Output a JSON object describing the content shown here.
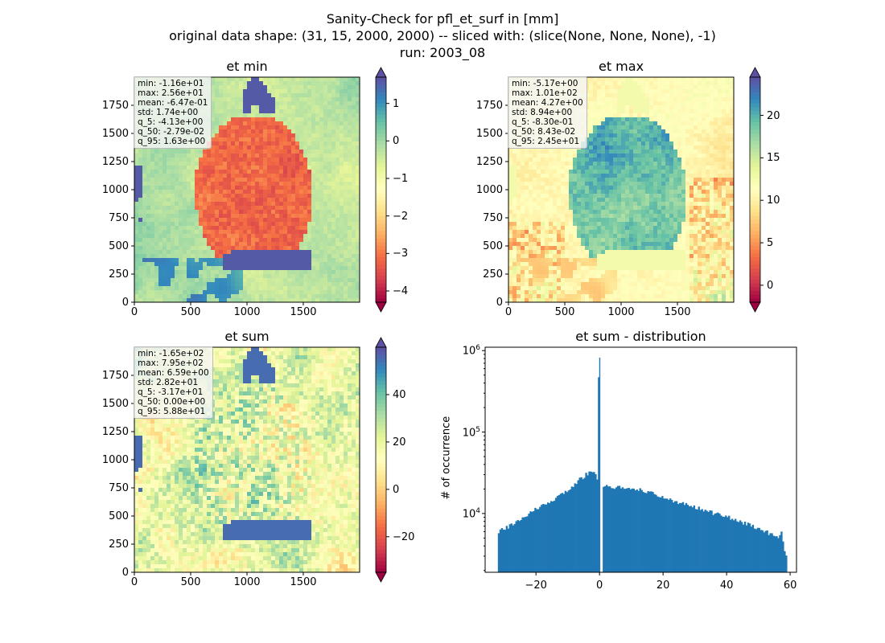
{
  "figure": {
    "title_lines": [
      "Sanity-Check for pfl_et_surf in [mm]",
      "original data shape: (31, 15, 2000, 2000) -- sliced with: (slice(None, None, None), -1)",
      "run: 2003_08"
    ]
  },
  "colors": {
    "spectral": [
      "#9e0142",
      "#d53e4f",
      "#f46d43",
      "#fdae61",
      "#fee08b",
      "#ffffbf",
      "#e6f598",
      "#abdda4",
      "#66c2a5",
      "#3288bd",
      "#5e4fa2"
    ],
    "hist_bar": "#1f77b4"
  },
  "chart_data": [
    {
      "type": "heatmap",
      "title": "et min",
      "x_ticks": [
        "0",
        "500",
        "1000",
        "1500"
      ],
      "y_ticks": [
        "0",
        "250",
        "500",
        "750",
        "1000",
        "1250",
        "1500",
        "1750"
      ],
      "xlim": [
        0,
        2000
      ],
      "ylim": [
        0,
        2000
      ],
      "colorbar": {
        "vmin": -4.3,
        "vmax": 1.7,
        "ticks": [
          "1",
          "0",
          "−1",
          "−2",
          "−3",
          "−4"
        ],
        "tick_values": [
          1,
          0,
          -1,
          -2,
          -3,
          -4
        ],
        "cmap": "Spectral",
        "extend": "both"
      },
      "stats": [
        "min: -1.16e+01",
        "max: 2.56e+01",
        "mean: -6.47e-01",
        "std: 1.74e+00",
        "q_5: -4.13e+00",
        "q_50: -2.79e-02",
        "q_95: 1.63e+00"
      ]
    },
    {
      "type": "heatmap",
      "title": "et max",
      "x_ticks": [
        "0",
        "500",
        "1000",
        "1500"
      ],
      "y_ticks": [
        "0",
        "250",
        "500",
        "750",
        "1000",
        "1250",
        "1500",
        "1750"
      ],
      "xlim": [
        0,
        2000
      ],
      "ylim": [
        0,
        2000
      ],
      "colorbar": {
        "vmin": -2,
        "vmax": 24.5,
        "ticks": [
          "20",
          "15",
          "10",
          "5",
          "0"
        ],
        "tick_values": [
          20,
          15,
          10,
          5,
          0
        ],
        "cmap": "Spectral",
        "extend": "both"
      },
      "stats": [
        "min: -5.17e+00",
        "max: 1.01e+02",
        "mean: 4.27e+00",
        "std: 8.94e+00",
        "q_5: -8.30e-01",
        "q_50: 8.43e-02",
        "q_95: 2.45e+01"
      ]
    },
    {
      "type": "heatmap",
      "title": "et sum",
      "x_ticks": [
        "0",
        "500",
        "1000",
        "1500"
      ],
      "y_ticks": [
        "0",
        "250",
        "500",
        "750",
        "1000",
        "1250",
        "1500",
        "1750"
      ],
      "xlim": [
        0,
        2000
      ],
      "ylim": [
        0,
        2000
      ],
      "colorbar": {
        "vmin": -35,
        "vmax": 60,
        "ticks": [
          "40",
          "20",
          "0",
          "−20"
        ],
        "tick_values": [
          40,
          20,
          0,
          -20
        ],
        "cmap": "Spectral",
        "extend": "both"
      },
      "stats": [
        "min: -1.65e+02",
        "max: 7.95e+02",
        "mean: 6.59e+00",
        "std: 2.82e+01",
        "q_5: -3.17e+01",
        "q_50: 0.00e+00",
        "q_95: 5.88e+01"
      ]
    },
    {
      "type": "bar",
      "title": "et sum - distribution",
      "ylabel": "# of occurrence",
      "yscale": "log",
      "xlim": [
        -36,
        62
      ],
      "ylim": [
        1900,
        1100000
      ],
      "x_ticks": [
        "−20",
        "0",
        "20",
        "40",
        "60"
      ],
      "x_tick_values": [
        -20,
        0,
        20,
        40,
        60
      ],
      "y_ticks": [
        "10^4",
        "10^5",
        "10^6"
      ],
      "y_tick_values": [
        10000,
        100000,
        1000000
      ],
      "bins": [
        [
          -32,
          6000
        ],
        [
          -30,
          6500
        ],
        [
          -28,
          7200
        ],
        [
          -26,
          8000
        ],
        [
          -24,
          9000
        ],
        [
          -22,
          10500
        ],
        [
          -20,
          11500
        ],
        [
          -18,
          12500
        ],
        [
          -16,
          14000
        ],
        [
          -14,
          15500
        ],
        [
          -12,
          17000
        ],
        [
          -10,
          19500
        ],
        [
          -8,
          23000
        ],
        [
          -6,
          27000
        ],
        [
          -4,
          31000
        ],
        [
          -2,
          33000
        ],
        [
          -1,
          27000
        ],
        [
          -0.1,
          820000
        ],
        [
          1,
          22000
        ],
        [
          2,
          21500
        ],
        [
          4,
          21000
        ],
        [
          6,
          21000
        ],
        [
          8,
          21000
        ],
        [
          10,
          20500
        ],
        [
          12,
          20000
        ],
        [
          14,
          19000
        ],
        [
          16,
          18000
        ],
        [
          18,
          17000
        ],
        [
          20,
          16000
        ],
        [
          22,
          15000
        ],
        [
          24,
          14000
        ],
        [
          26,
          13500
        ],
        [
          28,
          12500
        ],
        [
          30,
          12000
        ],
        [
          32,
          11000
        ],
        [
          34,
          10500
        ],
        [
          36,
          10000
        ],
        [
          38,
          9500
        ],
        [
          40,
          9000
        ],
        [
          42,
          8500
        ],
        [
          44,
          8000
        ],
        [
          46,
          7500
        ],
        [
          48,
          7000
        ],
        [
          50,
          6500
        ],
        [
          52,
          6000
        ],
        [
          54,
          5500
        ],
        [
          56,
          5000
        ],
        [
          57,
          5800
        ],
        [
          58,
          3600
        ],
        [
          58.6,
          2800
        ]
      ]
    }
  ]
}
